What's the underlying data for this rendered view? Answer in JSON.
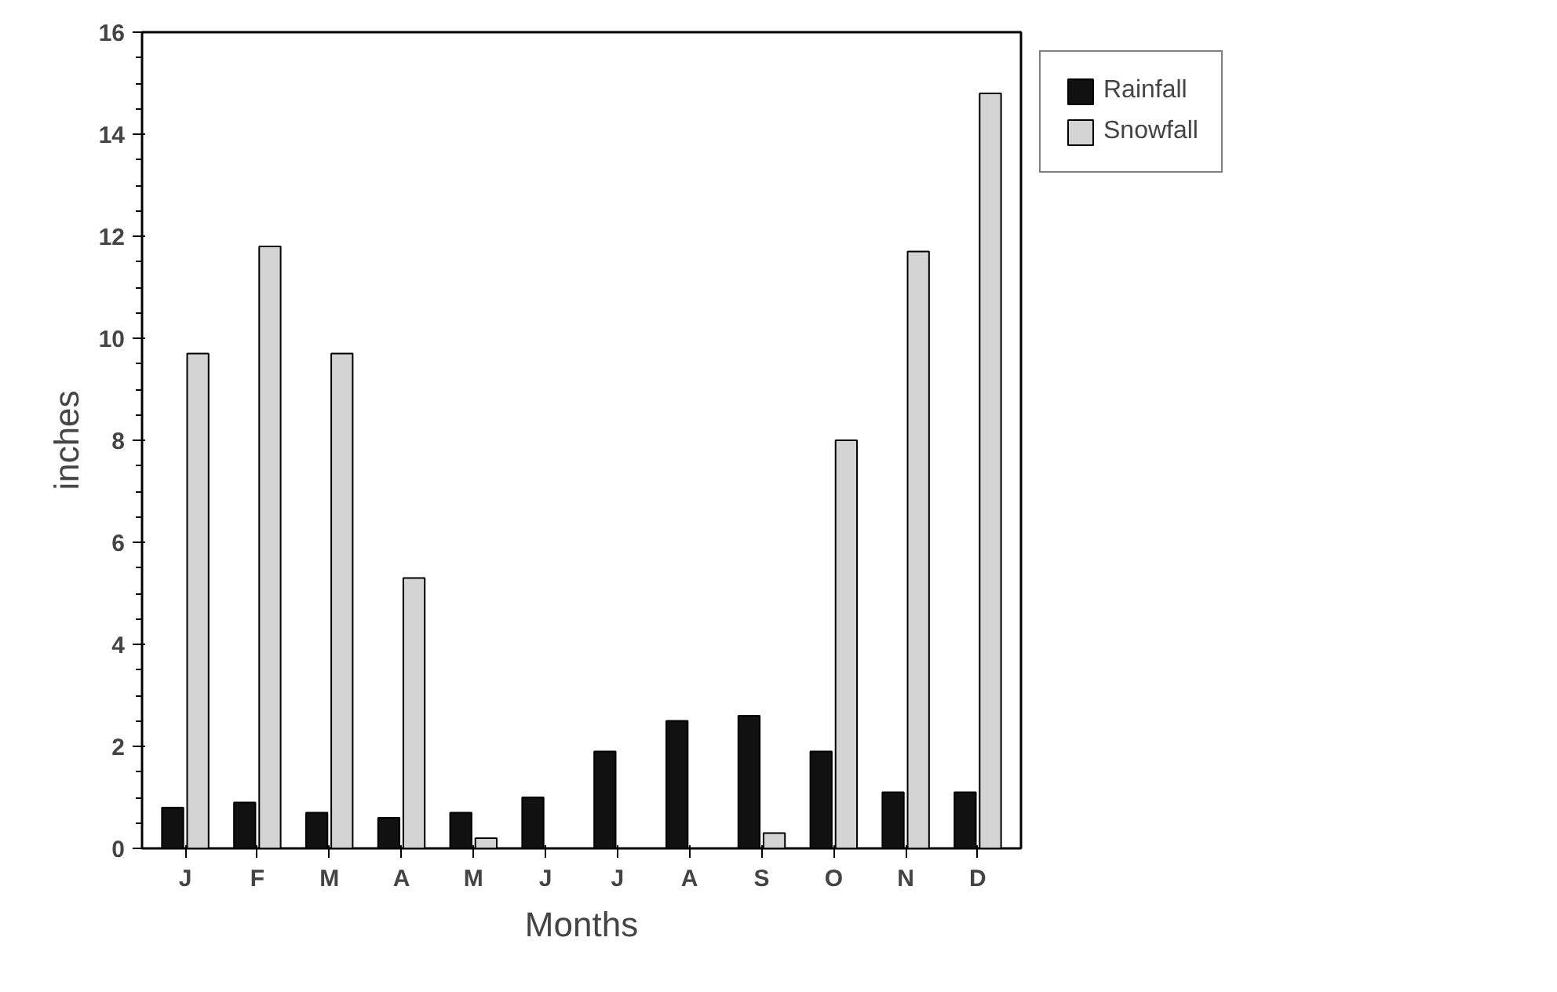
{
  "chart_data": {
    "type": "bar",
    "xlabel": "Months",
    "ylabel": "inches",
    "categories": [
      "J",
      "F",
      "M",
      "A",
      "M",
      "J",
      "J",
      "A",
      "S",
      "O",
      "N",
      "D"
    ],
    "series": [
      {
        "name": "Rainfall",
        "color": "#111111",
        "values": [
          0.8,
          0.9,
          0.7,
          0.6,
          0.7,
          1.0,
          1.9,
          2.5,
          2.6,
          1.9,
          1.1,
          1.1
        ]
      },
      {
        "name": "Snowfall",
        "color": "#d4d4d4",
        "values": [
          9.7,
          11.8,
          9.7,
          5.3,
          0.2,
          null,
          null,
          null,
          0.3,
          8.0,
          11.7,
          14.8
        ]
      }
    ],
    "ylim": [
      0,
      16
    ],
    "yticks": [
      0,
      2,
      4,
      6,
      8,
      10,
      12,
      14,
      16
    ],
    "grid": false,
    "legend": "top right"
  }
}
